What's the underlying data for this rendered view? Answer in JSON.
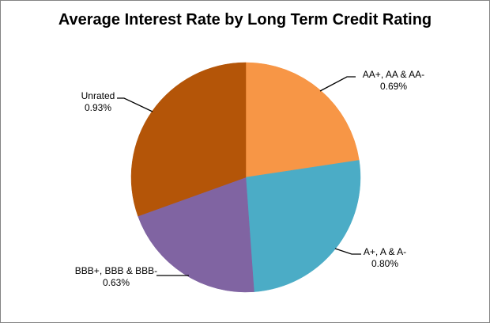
{
  "window": {
    "background": "#ffffff",
    "border_color": "#848484"
  },
  "chart_data": {
    "type": "pie",
    "title": "Average Interest Rate by Long Term Credit Rating",
    "legend": "none",
    "grid": "off",
    "direction": "clockwise",
    "start_angle_deg": 0,
    "leader_lines": true,
    "leader_line_color": "#000000",
    "label_text_color": "#000000",
    "title_color": "#000000",
    "slices": [
      {
        "category": "AA+, AA & AA-",
        "value": 0.69,
        "display": "0.69%",
        "color": "#F79646"
      },
      {
        "category": "A+, A & A-",
        "value": 0.8,
        "display": "0.80%",
        "color": "#4BACC6"
      },
      {
        "category": "BBB+, BBB & BBB-",
        "value": 0.63,
        "display": "0.63%",
        "color": "#8064A2"
      },
      {
        "category": "Unrated",
        "value": 0.93,
        "display": "0.93%",
        "color": "#B45508"
      }
    ]
  }
}
